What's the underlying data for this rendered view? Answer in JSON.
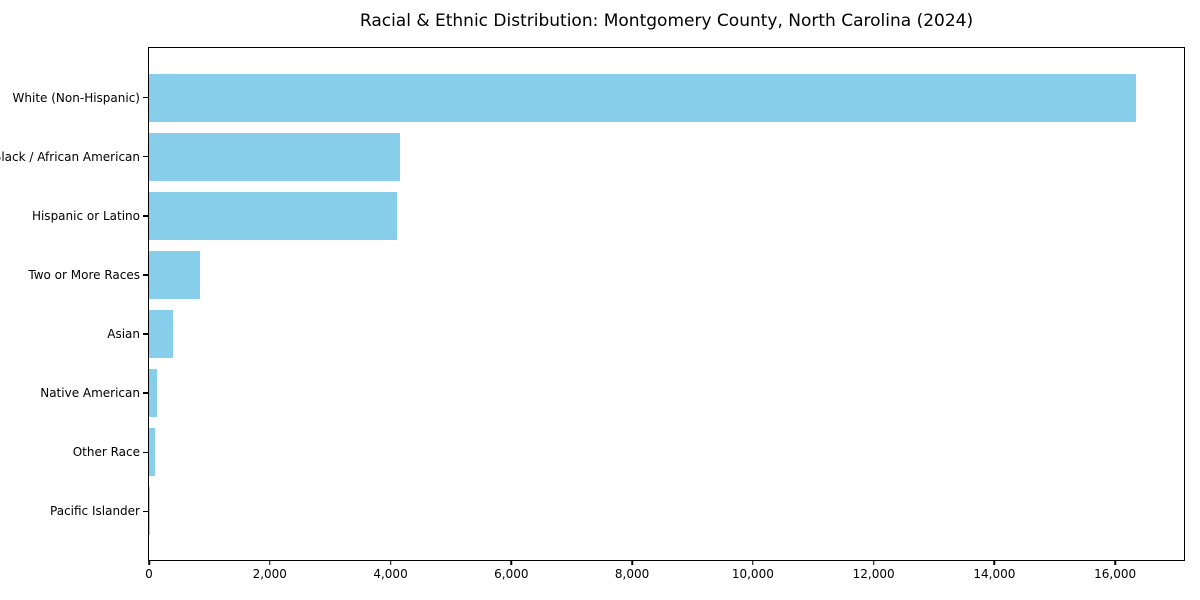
{
  "chart_data": {
    "type": "bar",
    "orientation": "horizontal",
    "title": "Racial & Ethnic Distribution: Montgomery County, North Carolina (2024)",
    "categories": [
      "White (Non-Hispanic)",
      "Black / African American",
      "Hispanic or Latino",
      "Two or More Races",
      "Asian",
      "Native American",
      "Other Race",
      "Pacific Islander"
    ],
    "values": [
      16350,
      4150,
      4100,
      840,
      400,
      130,
      100,
      10
    ],
    "xlabel": "",
    "ylabel": "",
    "xlim": [
      0,
      17140
    ],
    "x_ticks": [
      0,
      2000,
      4000,
      6000,
      8000,
      10000,
      12000,
      14000,
      16000
    ],
    "x_tick_labels": [
      "0",
      "2,000",
      "4,000",
      "6,000",
      "8,000",
      "10,000",
      "12,000",
      "14,000",
      "16,000"
    ],
    "bar_color": "#87CEEB",
    "background_color": "#ffffff",
    "axis_color": "#000000",
    "grid": false,
    "legend": null
  }
}
